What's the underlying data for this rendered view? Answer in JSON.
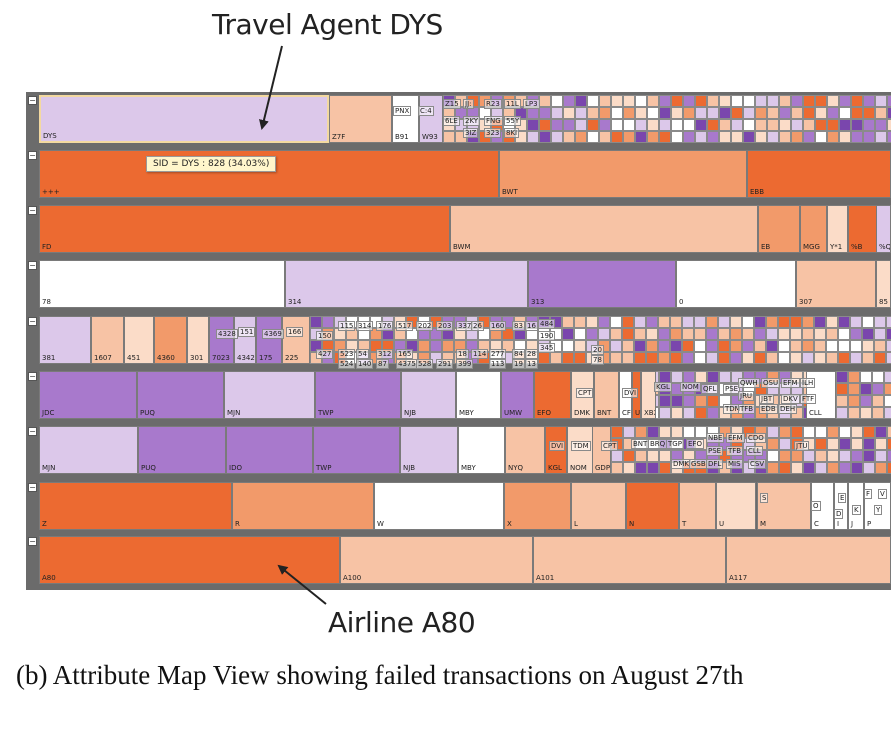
{
  "annotations": {
    "top": "Travel Agent DYS",
    "bottom": "Airline A80"
  },
  "tooltip": "SID = DYS : 828 (34.03%)",
  "collapse_glyph": "−",
  "caption": "(b) Attribute Map View showing failed transactions on August 27th",
  "colors": {
    "dark_orange": "#ec6a31",
    "orange": "#f29a6a",
    "light_orange": "#f7c3a5",
    "peach": "#fbdcc8",
    "white": "#ffffff",
    "light_purple": "#dcc8ea",
    "purple": "#a879cc",
    "dark_purple": "#7a46ad",
    "separator": "#6b6b6b"
  },
  "rows": [
    {
      "cells": [
        {
          "label": "DYS",
          "color": "light_purple"
        },
        {
          "label": "Z7F",
          "color": "light_orange"
        },
        {
          "label": "B91",
          "color": "white"
        },
        {
          "label": "W93",
          "color": "light_purple"
        }
      ],
      "tiny_labels": [
        "PNX",
        "C:4",
        "Z15",
        "JJ:",
        "R23",
        "11L",
        "LP3",
        "6LE",
        "2KY",
        "FNG",
        "55Y",
        "3IZ",
        "323",
        "8KI"
      ]
    },
    {
      "cells": [
        {
          "label": "+++",
          "color": "dark_orange"
        },
        {
          "label": "BWT",
          "color": "orange"
        },
        {
          "label": "EBB",
          "color": "dark_orange"
        }
      ]
    },
    {
      "cells": [
        {
          "label": "FD",
          "color": "dark_orange"
        },
        {
          "label": "BWM",
          "color": "light_orange"
        },
        {
          "label": "EB",
          "color": "orange"
        },
        {
          "label": "MGG",
          "color": "orange"
        },
        {
          "label": "Y*1",
          "color": "peach"
        },
        {
          "label": "%B",
          "color": "dark_orange"
        },
        {
          "label": "%Q",
          "color": "light_purple"
        },
        {
          "label": "NBO",
          "color": "white"
        }
      ]
    },
    {
      "cells": [
        {
          "label": "78",
          "color": "white"
        },
        {
          "label": "314",
          "color": "light_purple"
        },
        {
          "label": "313",
          "color": "purple"
        },
        {
          "label": "0",
          "color": "white"
        },
        {
          "label": "307",
          "color": "light_orange"
        },
        {
          "label": "85",
          "color": "peach"
        }
      ]
    },
    {
      "cells": [
        {
          "label": "381",
          "color": "light_purple"
        },
        {
          "label": "1607",
          "color": "light_orange"
        },
        {
          "label": "451",
          "color": "peach"
        },
        {
          "label": "4360",
          "color": "orange"
        },
        {
          "label": "301",
          "color": "peach"
        },
        {
          "label": "7023",
          "color": "purple"
        },
        {
          "label": "4342",
          "color": "light_purple"
        },
        {
          "label": "175",
          "color": "purple"
        },
        {
          "label": "225",
          "color": "light_orange"
        }
      ],
      "tiny_labels": [
        "4328",
        "151",
        "4369",
        "166",
        "150",
        "115",
        "314",
        "176",
        "517",
        "202",
        "203",
        "337",
        "26",
        "160",
        "83",
        "16",
        "484",
        "427",
        "523",
        "54",
        "312",
        "165",
        "18",
        "114",
        "277",
        "84",
        "28",
        "190",
        "524",
        "140",
        "87",
        "4375",
        "528",
        "291",
        "399",
        "113",
        "19",
        "13",
        "345",
        "20",
        "78"
      ]
    },
    {
      "cells": [
        {
          "label": "JDC",
          "color": "purple"
        },
        {
          "label": "PUQ",
          "color": "purple"
        },
        {
          "label": "MJN",
          "color": "light_purple"
        },
        {
          "label": "TWP",
          "color": "purple"
        },
        {
          "label": "NJB",
          "color": "light_purple"
        },
        {
          "label": "MBY",
          "color": "white"
        },
        {
          "label": "UMW",
          "color": "purple"
        },
        {
          "label": "EFO",
          "color": "dark_orange"
        },
        {
          "label": "DMK",
          "color": "peach"
        },
        {
          "label": "BNT",
          "color": "light_orange"
        },
        {
          "label": "CFZ",
          "color": "white"
        },
        {
          "label": "UQB",
          "color": "dark_orange"
        },
        {
          "label": "XBX",
          "color": "peach"
        },
        {
          "label": "CLL",
          "color": "white"
        }
      ],
      "tiny_labels": [
        "CPT",
        "DVI",
        "KGL",
        "NOM",
        "QFL",
        "PSE",
        "QWH",
        "OSU",
        "EFM",
        "ILH",
        "JRU",
        "JBT",
        "DKV",
        "FTF",
        "TDM",
        "TFB",
        "EDB",
        "DEH"
      ]
    },
    {
      "cells": [
        {
          "label": "MJN",
          "color": "light_purple"
        },
        {
          "label": "PUQ",
          "color": "purple"
        },
        {
          "label": "IDO",
          "color": "purple"
        },
        {
          "label": "TWP",
          "color": "purple"
        },
        {
          "label": "NJB",
          "color": "light_purple"
        },
        {
          "label": "MBY",
          "color": "white"
        },
        {
          "label": "NYQ",
          "color": "light_orange"
        },
        {
          "label": "KGL",
          "color": "dark_orange"
        },
        {
          "label": "NOM",
          "color": "peach"
        },
        {
          "label": "GDP",
          "color": "light_orange"
        }
      ],
      "tiny_labels": [
        "DVI",
        "TDM",
        "CPT",
        "BNT",
        "BRQ",
        "TGP",
        "EFO",
        "NBE",
        "EFM",
        "CDO",
        "PSE",
        "TFB",
        "CLL",
        "JTU",
        "DMK",
        "GSB",
        "DFL",
        "MIS",
        "CSV"
      ]
    },
    {
      "cells": [
        {
          "label": "Z",
          "color": "dark_orange"
        },
        {
          "label": "R",
          "color": "orange"
        },
        {
          "label": "W",
          "color": "white"
        },
        {
          "label": "X",
          "color": "orange"
        },
        {
          "label": "L",
          "color": "light_orange"
        },
        {
          "label": "N",
          "color": "dark_orange"
        },
        {
          "label": "T",
          "color": "light_orange"
        },
        {
          "label": "U",
          "color": "peach"
        },
        {
          "label": "M",
          "color": "light_orange"
        },
        {
          "label": "C",
          "color": "white"
        },
        {
          "label": "I",
          "color": "white"
        },
        {
          "label": "J",
          "color": "white"
        },
        {
          "label": "P",
          "color": "white"
        }
      ],
      "tiny_labels": [
        "S",
        "O",
        "E",
        "F",
        "V",
        "D",
        "K",
        "Y"
      ]
    },
    {
      "cells": [
        {
          "label": "A80",
          "color": "dark_orange"
        },
        {
          "label": "A100",
          "color": "light_orange"
        },
        {
          "label": "A101",
          "color": "light_orange"
        },
        {
          "label": "A117",
          "color": "light_orange"
        }
      ]
    }
  ]
}
